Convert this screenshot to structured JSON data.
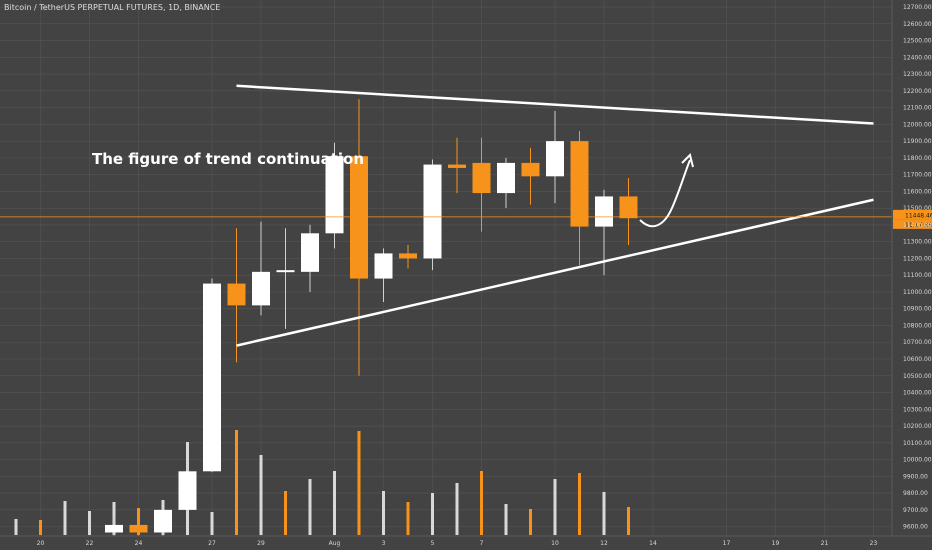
{
  "chart_data": {
    "type": "candlestick",
    "title": "Bitcoin / TetherUS PERPETUAL FUTURES, 1D, BINANCE",
    "annotation": "The figure of trend continuation",
    "ylim": [
      9550,
      12730
    ],
    "y_ticks": [
      "12700.00",
      "12600.00",
      "12500.00",
      "12400.00",
      "12300.00",
      "12200.00",
      "12100.00",
      "12000.00",
      "11900.00",
      "11800.00",
      "11700.00",
      "11600.00",
      "11500.00",
      "11400.00",
      "11300.00",
      "11200.00",
      "11100.00",
      "11000.00",
      "10900.00",
      "10800.00",
      "10700.00",
      "10600.00",
      "10500.00",
      "10400.00",
      "10300.00",
      "10200.00",
      "10100.00",
      "10000.00",
      "9900.00",
      "9800.00",
      "9700.00",
      "9600.00"
    ],
    "x_ticks": [
      {
        "i": 1,
        "label": "20"
      },
      {
        "i": 3,
        "label": "22"
      },
      {
        "i": 5,
        "label": "24"
      },
      {
        "i": 8,
        "label": "27"
      },
      {
        "i": 10,
        "label": "29"
      },
      {
        "i": 13,
        "label": "Aug"
      },
      {
        "i": 15,
        "label": "3"
      },
      {
        "i": 17,
        "label": "5"
      },
      {
        "i": 19,
        "label": "7"
      },
      {
        "i": 22,
        "label": "10"
      },
      {
        "i": 24,
        "label": "12"
      },
      {
        "i": 26,
        "label": "14"
      },
      {
        "i": 29,
        "label": "17"
      },
      {
        "i": 31,
        "label": "19"
      },
      {
        "i": 33,
        "label": "21"
      },
      {
        "i": 35,
        "label": "23"
      }
    ],
    "candles": [
      {
        "i": 4,
        "open": 9565,
        "high": 9670,
        "low": 9545,
        "close": 9610
      },
      {
        "i": 5,
        "open": 9610,
        "high": 9660,
        "low": 9545,
        "close": 9565
      },
      {
        "i": 6,
        "open": 9565,
        "high": 9710,
        "low": 9545,
        "close": 9700
      },
      {
        "i": 7,
        "open": 9700,
        "high": 9950,
        "low": 9690,
        "close": 9930
      },
      {
        "i": 8,
        "open": 9930,
        "high": 11080,
        "low": 9925,
        "close": 11050
      },
      {
        "i": 9,
        "open": 11050,
        "high": 11380,
        "low": 10580,
        "close": 10920
      },
      {
        "i": 10,
        "open": 10920,
        "high": 11420,
        "low": 10860,
        "close": 11120
      },
      {
        "i": 11,
        "open": 11120,
        "high": 11380,
        "low": 10780,
        "close": 11130
      },
      {
        "i": 12,
        "open": 11120,
        "high": 11400,
        "low": 11000,
        "close": 11350
      },
      {
        "i": 13,
        "open": 11350,
        "high": 11890,
        "low": 11260,
        "close": 11810
      },
      {
        "i": 14,
        "open": 11810,
        "high": 12150,
        "low": 10500,
        "close": 11080
      },
      {
        "i": 15,
        "open": 11080,
        "high": 11260,
        "low": 10940,
        "close": 11230
      },
      {
        "i": 16,
        "open": 11230,
        "high": 11280,
        "low": 11140,
        "close": 11200
      },
      {
        "i": 17,
        "open": 11200,
        "high": 11790,
        "low": 11130,
        "close": 11760
      },
      {
        "i": 18,
        "open": 11760,
        "high": 11920,
        "low": 11590,
        "close": 11740
      },
      {
        "i": 19,
        "open": 11770,
        "high": 11920,
        "low": 11360,
        "close": 11590
      },
      {
        "i": 20,
        "open": 11590,
        "high": 11800,
        "low": 11500,
        "close": 11770
      },
      {
        "i": 21,
        "open": 11770,
        "high": 11860,
        "low": 11520,
        "close": 11690
      },
      {
        "i": 22,
        "open": 11690,
        "high": 12080,
        "low": 11530,
        "close": 11900
      },
      {
        "i": 23,
        "open": 11900,
        "high": 11960,
        "low": 11160,
        "close": 11390
      },
      {
        "i": 24,
        "open": 11390,
        "high": 11610,
        "low": 11100,
        "close": 11570
      },
      {
        "i": 25,
        "open": 11570,
        "high": 11680,
        "low": 11280,
        "close": 11440
      }
    ],
    "volume_bars": [
      {
        "i": 0,
        "v": 16,
        "up": true
      },
      {
        "i": 1,
        "v": 15,
        "up": false
      },
      {
        "i": 2,
        "v": 34,
        "up": true
      },
      {
        "i": 3,
        "v": 24,
        "up": true
      },
      {
        "i": 4,
        "v": 33,
        "up": true
      },
      {
        "i": 5,
        "v": 27,
        "up": false
      },
      {
        "i": 6,
        "v": 35,
        "up": true
      },
      {
        "i": 7,
        "v": 93,
        "up": true
      },
      {
        "i": 8,
        "v": 23,
        "up": true
      },
      {
        "i": 9,
        "v": 105,
        "up": false
      },
      {
        "i": 10,
        "v": 80,
        "up": true
      },
      {
        "i": 11,
        "v": 44,
        "up": false
      },
      {
        "i": 12,
        "v": 56,
        "up": true
      },
      {
        "i": 13,
        "v": 64,
        "up": true
      },
      {
        "i": 14,
        "v": 104,
        "up": false
      },
      {
        "i": 15,
        "v": 44,
        "up": true
      },
      {
        "i": 16,
        "v": 33,
        "up": false
      },
      {
        "i": 17,
        "v": 42,
        "up": true
      },
      {
        "i": 18,
        "v": 52,
        "up": true
      },
      {
        "i": 19,
        "v": 64,
        "up": false
      },
      {
        "i": 20,
        "v": 31,
        "up": true
      },
      {
        "i": 21,
        "v": 26,
        "up": false
      },
      {
        "i": 22,
        "v": 56,
        "up": true
      },
      {
        "i": 23,
        "v": 62,
        "up": false
      },
      {
        "i": 24,
        "v": 43,
        "up": true
      },
      {
        "i": 25,
        "v": 28,
        "up": false
      }
    ],
    "trendlines": [
      {
        "name": "upper-resistance",
        "from": {
          "i": 9.0,
          "price": 12230
        },
        "to": {
          "i": 35.0,
          "price": 12005
        }
      },
      {
        "name": "lower-support",
        "from": {
          "i": 9.0,
          "price": 10680
        },
        "to": {
          "i": 35.0,
          "price": 11550
        }
      }
    ],
    "current_price_label": "11448.46",
    "countdown_label": "11:17:35",
    "current_price": 11448,
    "colors": {
      "background": "#434343",
      "up": "#ffffff",
      "down": "#f7931a",
      "grid": "#555555",
      "wick": "#cccccc",
      "line": "#ffffff",
      "price_line": "#f7931a"
    },
    "grid": true,
    "legend": "none"
  }
}
